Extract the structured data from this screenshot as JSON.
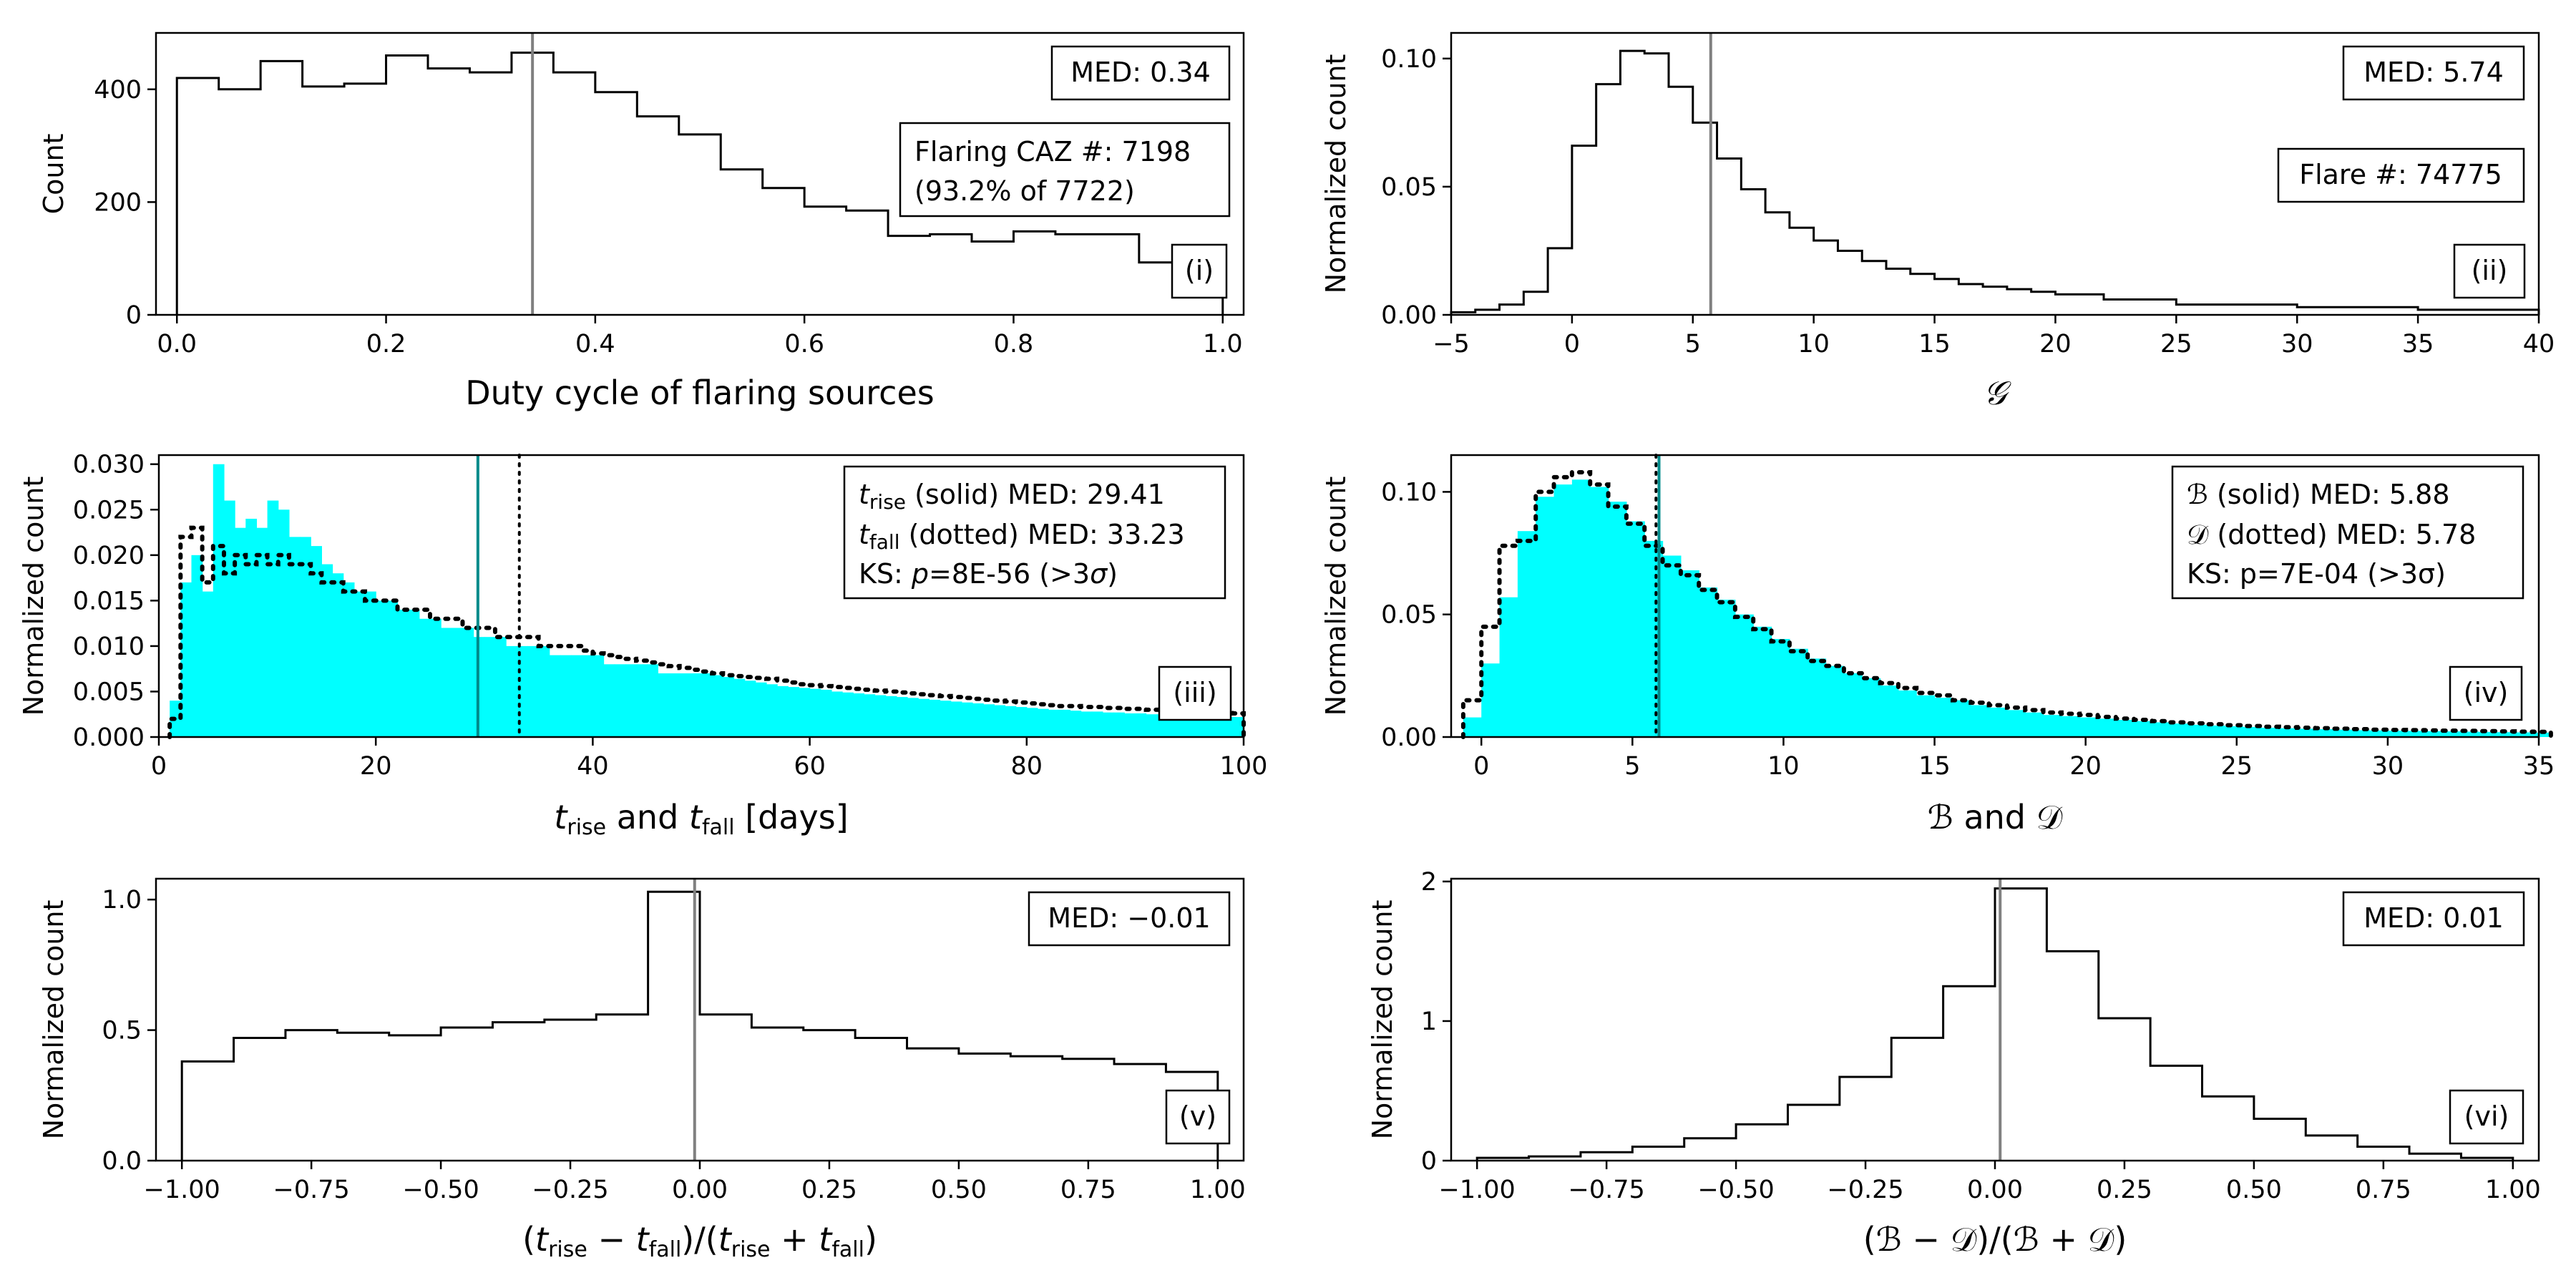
{
  "chart_data": [
    {
      "panel": "(i)",
      "type": "histogram",
      "xlabel": "Duty cycle of flaring sources",
      "ylabel": "Count",
      "xlim": [
        -0.02,
        1.02
      ],
      "ylim": [
        0,
        500
      ],
      "xticks": [
        "0.0",
        "0.2",
        "0.4",
        "0.6",
        "0.8",
        "1.0"
      ],
      "yticks": [
        "0",
        "200",
        "400"
      ],
      "bins": [
        0.0,
        0.04,
        0.08,
        0.12,
        0.16,
        0.2,
        0.24,
        0.28,
        0.32,
        0.36,
        0.4,
        0.44,
        0.48,
        0.52,
        0.56,
        0.6,
        0.64,
        0.68,
        0.72,
        0.76,
        0.8,
        0.84,
        0.88,
        0.92,
        0.96,
        1.0
      ],
      "values": [
        420,
        400,
        450,
        405,
        410,
        460,
        437,
        430,
        465,
        430,
        395,
        352,
        320,
        258,
        225,
        192,
        185,
        140,
        143,
        130,
        148,
        143,
        143,
        93,
        80
      ],
      "median": 0.34,
      "annotations": {
        "median_label": "MED: 0.34",
        "info_line1": "Flaring CAZ #: 7198",
        "info_line2": "(93.2% of 7722)",
        "tag": "(i)"
      }
    },
    {
      "panel": "(ii)",
      "type": "histogram",
      "xlabel": "𝒢",
      "ylabel": "Normalized count",
      "xlim": [
        -5,
        40
      ],
      "ylim": [
        0,
        0.11
      ],
      "xticks": [
        "−5",
        "0",
        "5",
        "10",
        "15",
        "20",
        "25",
        "30",
        "35",
        "40"
      ],
      "yticks": [
        "0.00",
        "0.05",
        "0.10"
      ],
      "bins": [
        -5,
        -4,
        -3,
        -2,
        -1,
        0,
        1,
        2,
        3,
        4,
        5,
        6,
        7,
        8,
        9,
        10,
        11,
        12,
        13,
        14,
        15,
        16,
        17,
        18,
        19,
        20,
        22,
        25,
        30,
        35,
        40
      ],
      "values": [
        0.001,
        0.002,
        0.004,
        0.009,
        0.026,
        0.066,
        0.09,
        0.103,
        0.102,
        0.089,
        0.075,
        0.061,
        0.049,
        0.04,
        0.034,
        0.029,
        0.025,
        0.021,
        0.018,
        0.016,
        0.014,
        0.012,
        0.011,
        0.01,
        0.009,
        0.008,
        0.006,
        0.004,
        0.003,
        0.002
      ],
      "median": 5.74,
      "annotations": {
        "median_label": "MED: 5.74",
        "info_line1": "Flare #: 74775",
        "tag": "(ii)"
      }
    },
    {
      "panel": "(iii)",
      "type": "histogram",
      "xlabel": "t_rise and t_fall [days]",
      "ylabel": "Normalized count",
      "xlim": [
        0,
        100
      ],
      "ylim": [
        0,
        0.031
      ],
      "xticks": [
        "0",
        "20",
        "40",
        "60",
        "80",
        "100"
      ],
      "yticks": [
        "0.000",
        "0.005",
        "0.010",
        "0.015",
        "0.020",
        "0.025",
        "0.030"
      ],
      "bin_width": 1,
      "bin_start": 1,
      "series": [
        {
          "name": "t_rise (solid)",
          "style": "filled-cyan",
          "median": 29.41,
          "values": [
            0.004,
            0.017,
            0.02,
            0.016,
            0.03,
            0.026,
            0.023,
            0.024,
            0.023,
            0.026,
            0.025,
            0.022,
            0.022,
            0.021,
            0.019,
            0.018,
            0.017,
            0.016,
            0.016,
            0.015,
            0.015,
            0.014,
            0.014,
            0.013,
            0.013,
            0.012,
            0.012,
            0.012,
            0.011,
            0.011,
            0.011,
            0.01,
            0.01,
            0.01,
            0.01,
            0.009,
            0.009,
            0.009,
            0.009,
            0.009,
            0.008,
            0.008,
            0.008,
            0.008,
            0.008,
            0.007,
            0.007,
            0.007,
            0.007,
            0.007,
            0.0068,
            0.0066,
            0.0064,
            0.0062,
            0.006,
            0.0058,
            0.0056,
            0.0055,
            0.0054,
            0.0053,
            0.0052,
            0.005,
            0.0049,
            0.0048,
            0.0047,
            0.0046,
            0.0045,
            0.0044,
            0.0043,
            0.0042,
            0.0041,
            0.004,
            0.0039,
            0.0038,
            0.0037,
            0.0036,
            0.0035,
            0.0034,
            0.0033,
            0.0032,
            0.0031,
            0.003,
            0.003,
            0.0029,
            0.0028,
            0.0028,
            0.0027,
            0.0027,
            0.0026,
            0.0026,
            0.0025,
            0.0025,
            0.0024,
            0.0024,
            0.0023,
            0.0023,
            0.0023,
            0.0022,
            0.0022
          ]
        },
        {
          "name": "t_fall (dotted)",
          "style": "dotted-black",
          "median": 33.23,
          "values": [
            0.002,
            0.022,
            0.023,
            0.017,
            0.021,
            0.018,
            0.02,
            0.019,
            0.02,
            0.019,
            0.02,
            0.019,
            0.019,
            0.018,
            0.017,
            0.017,
            0.016,
            0.016,
            0.015,
            0.015,
            0.015,
            0.014,
            0.014,
            0.014,
            0.013,
            0.013,
            0.013,
            0.012,
            0.012,
            0.012,
            0.011,
            0.011,
            0.011,
            0.011,
            0.01,
            0.01,
            0.01,
            0.01,
            0.0095,
            0.0092,
            0.009,
            0.0088,
            0.0086,
            0.0084,
            0.0082,
            0.008,
            0.0078,
            0.0076,
            0.0074,
            0.0072,
            0.007,
            0.0068,
            0.0067,
            0.0066,
            0.0065,
            0.0064,
            0.0062,
            0.006,
            0.0058,
            0.0057,
            0.0056,
            0.0055,
            0.0054,
            0.0053,
            0.0052,
            0.0051,
            0.005,
            0.0049,
            0.0048,
            0.0047,
            0.0046,
            0.0045,
            0.0044,
            0.0043,
            0.0042,
            0.0041,
            0.004,
            0.0039,
            0.0038,
            0.0037,
            0.0036,
            0.0035,
            0.0034,
            0.0034,
            0.0033,
            0.0033,
            0.0032,
            0.0032,
            0.0031,
            0.0031,
            0.003,
            0.003,
            0.0029,
            0.0029,
            0.0028,
            0.0028,
            0.0027,
            0.0027,
            0.0026
          ]
        }
      ],
      "annotations": {
        "line1": "t_rise (solid) MED: 29.41",
        "line2": "t_fall (dotted) MED: 33.23",
        "line3": "KS: p=8E-56 (>3σ)",
        "tag": "(iii)"
      }
    },
    {
      "panel": "(iv)",
      "type": "histogram",
      "xlabel": "ℬ and 𝒟",
      "ylabel": "Normalized count",
      "xlim": [
        -1,
        35
      ],
      "ylim": [
        0,
        0.115
      ],
      "xticks": [
        "0",
        "5",
        "10",
        "15",
        "20",
        "25",
        "30",
        "35"
      ],
      "yticks": [
        "0.00",
        "0.05",
        "0.10"
      ],
      "bin_width": 0.6,
      "bin_start": -0.6,
      "series": [
        {
          "name": "B (solid)",
          "style": "filled-cyan",
          "median": 5.88,
          "values": [
            0.008,
            0.03,
            0.057,
            0.084,
            0.098,
            0.103,
            0.105,
            0.102,
            0.096,
            0.088,
            0.08,
            0.074,
            0.068,
            0.061,
            0.056,
            0.05,
            0.045,
            0.04,
            0.036,
            0.032,
            0.029,
            0.026,
            0.024,
            0.021,
            0.019,
            0.017,
            0.016,
            0.015,
            0.013,
            0.012,
            0.011,
            0.01,
            0.009,
            0.0085,
            0.008,
            0.0075,
            0.007,
            0.0065,
            0.006,
            0.0055,
            0.005,
            0.0047,
            0.0044,
            0.0041,
            0.0038,
            0.0036,
            0.0034,
            0.0032,
            0.003,
            0.0028,
            0.0027,
            0.0026,
            0.0025,
            0.0024,
            0.0023,
            0.0022,
            0.0021,
            0.002,
            0.0019,
            0.0018
          ]
        },
        {
          "name": "D (dotted)",
          "style": "dotted-black",
          "median": 5.78,
          "values": [
            0.015,
            0.045,
            0.078,
            0.08,
            0.1,
            0.106,
            0.108,
            0.103,
            0.094,
            0.087,
            0.078,
            0.07,
            0.066,
            0.06,
            0.055,
            0.049,
            0.044,
            0.039,
            0.035,
            0.031,
            0.029,
            0.026,
            0.024,
            0.022,
            0.02,
            0.018,
            0.017,
            0.015,
            0.014,
            0.013,
            0.012,
            0.011,
            0.01,
            0.0095,
            0.009,
            0.0082,
            0.0075,
            0.007,
            0.0065,
            0.006,
            0.0056,
            0.0052,
            0.0048,
            0.0045,
            0.0042,
            0.004,
            0.0038,
            0.0036,
            0.0034,
            0.0032,
            0.003,
            0.0029,
            0.0028,
            0.0027,
            0.0026,
            0.0025,
            0.0024,
            0.0023,
            0.0022,
            0.0021
          ]
        }
      ],
      "annotations": {
        "line1": "ℬ (solid) MED: 5.88",
        "line2": "𝒟 (dotted) MED: 5.78",
        "line3": "KS: p=7E-04 (>3σ)",
        "tag": "(iv)"
      }
    },
    {
      "panel": "(v)",
      "type": "histogram",
      "xlabel": "(t_rise − t_fall)/(t_rise + t_fall)",
      "ylabel": "Normalized count",
      "xlim": [
        -1.05,
        1.05
      ],
      "ylim": [
        0,
        1.08
      ],
      "xticks": [
        "−1.00",
        "−0.75",
        "−0.50",
        "−0.25",
        "0.00",
        "0.25",
        "0.50",
        "0.75",
        "1.00"
      ],
      "yticks": [
        "0.0",
        "0.5",
        "1.0"
      ],
      "bins": [
        -1.0,
        -0.9,
        -0.8,
        -0.7,
        -0.6,
        -0.5,
        -0.4,
        -0.3,
        -0.2,
        -0.1,
        0.0,
        0.1,
        0.2,
        0.3,
        0.4,
        0.5,
        0.6,
        0.7,
        0.8,
        0.9,
        1.0
      ],
      "values": [
        0.38,
        0.47,
        0.5,
        0.49,
        0.48,
        0.51,
        0.53,
        0.54,
        0.56,
        1.03,
        0.56,
        0.51,
        0.5,
        0.47,
        0.43,
        0.41,
        0.4,
        0.39,
        0.37,
        0.34
      ],
      "median": -0.01,
      "annotations": {
        "median_label": "MED: −0.01",
        "tag": "(v)"
      }
    },
    {
      "panel": "(vi)",
      "type": "histogram",
      "xlabel": "(ℬ − 𝒟)/(ℬ + 𝒟)",
      "ylabel": "Normalized count",
      "xlim": [
        -1.05,
        1.05
      ],
      "ylim": [
        0,
        2.02
      ],
      "xticks": [
        "−1.00",
        "−0.75",
        "−0.50",
        "−0.25",
        "0.00",
        "0.25",
        "0.50",
        "0.75",
        "1.00"
      ],
      "yticks": [
        "0",
        "1",
        "2"
      ],
      "bins": [
        -1.0,
        -0.9,
        -0.8,
        -0.7,
        -0.6,
        -0.5,
        -0.4,
        -0.3,
        -0.2,
        -0.1,
        0.0,
        0.1,
        0.2,
        0.3,
        0.4,
        0.5,
        0.6,
        0.7,
        0.8,
        0.9,
        1.0
      ],
      "values": [
        0.02,
        0.03,
        0.06,
        0.1,
        0.16,
        0.26,
        0.4,
        0.6,
        0.88,
        1.25,
        1.95,
        1.5,
        1.02,
        0.68,
        0.46,
        0.3,
        0.18,
        0.1,
        0.05,
        0.02
      ],
      "median": 0.01,
      "annotations": {
        "median_label": "MED: 0.01",
        "tag": "(vi)"
      }
    }
  ]
}
